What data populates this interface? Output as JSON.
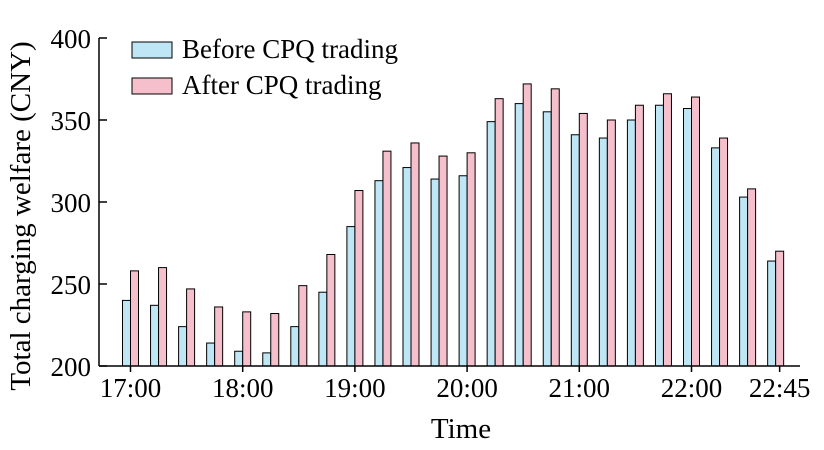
{
  "chart_data": {
    "type": "bar",
    "xlabel": "Time",
    "ylabel": "Total charging welfare (CNY)",
    "ylim": [
      200,
      400
    ],
    "yticks": [
      "200",
      "250",
      "300",
      "350",
      "400"
    ],
    "xtick_labels": [
      "17:00",
      "18:00",
      "19:00",
      "20:00",
      "21:00",
      "22:00",
      "22:45"
    ],
    "grid": false,
    "legend_position": "top-left",
    "categories": [
      "17:00",
      "17:15",
      "17:30",
      "17:45",
      "18:00",
      "18:15",
      "18:30",
      "18:45",
      "19:00",
      "19:15",
      "19:30",
      "19:45",
      "20:00",
      "20:15",
      "20:30",
      "20:45",
      "21:00",
      "21:15",
      "21:30",
      "21:45",
      "22:00",
      "22:15",
      "22:30",
      "22:45"
    ],
    "series": [
      {
        "name": "Before CPQ trading",
        "color": "#bfe6f5",
        "values": [
          240,
          237,
          224,
          214,
          209,
          208,
          224,
          245,
          285,
          313,
          321,
          314,
          316,
          349,
          360,
          355,
          341,
          339,
          350,
          359,
          357,
          333,
          303,
          264
        ]
      },
      {
        "name": "After CPQ trading",
        "color": "#f5bfcc",
        "values": [
          258,
          260,
          247,
          236,
          233,
          232,
          249,
          268,
          307,
          331,
          336,
          328,
          330,
          363,
          372,
          369,
          354,
          350,
          359,
          366,
          364,
          339,
          308,
          270
        ]
      }
    ]
  }
}
